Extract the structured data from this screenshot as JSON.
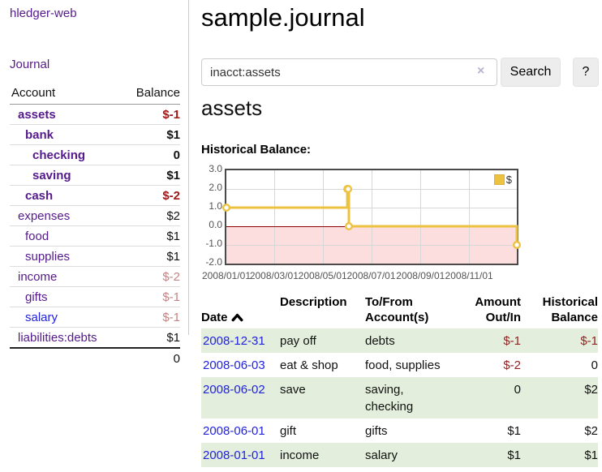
{
  "colors": {
    "link_purple": "#551a8b",
    "link_blue": "#2222dd",
    "negative_strong": "#9e1616",
    "negative_dim": "#c28383",
    "table_negative": "#942121",
    "row_stripe_green": "#e3efdc",
    "series_yellow": "#edc240",
    "negative_region_pink": "#fddede",
    "zero_line_red": "#8b0000"
  },
  "sidebar": {
    "brand": "hledger-web",
    "journal_link": "Journal",
    "accounts_table": {
      "account_header": "Account",
      "balance_header": "Balance",
      "rows": [
        {
          "name": "assets",
          "depth": 1,
          "bold": true,
          "balance": "$-1",
          "balance_style": "neg-strong"
        },
        {
          "name": "bank",
          "depth": 2,
          "bold": true,
          "balance": "$1",
          "balance_style": "pos-strong"
        },
        {
          "name": "checking",
          "depth": 3,
          "bold": true,
          "balance": "0",
          "balance_style": "pos-strong"
        },
        {
          "name": "saving",
          "depth": 3,
          "bold": true,
          "balance": "$1",
          "balance_style": "pos-strong"
        },
        {
          "name": "cash",
          "depth": 2,
          "bold": true,
          "balance": "$-2",
          "balance_style": "neg-strong"
        },
        {
          "name": "expenses",
          "depth": 1,
          "bold": false,
          "balance": "$2",
          "balance_style": "pos"
        },
        {
          "name": "food",
          "depth": 2,
          "bold": false,
          "balance": "$1",
          "balance_style": "pos"
        },
        {
          "name": "supplies",
          "depth": 2,
          "bold": false,
          "balance": "$1",
          "balance_style": "pos"
        },
        {
          "name": "income",
          "depth": 1,
          "bold": false,
          "balance": "$-2",
          "balance_style": "neg-dim"
        },
        {
          "name": "gifts",
          "depth": 2,
          "bold": false,
          "balance": "$-1",
          "balance_style": "neg-dim"
        },
        {
          "name": "salary",
          "depth": 2,
          "bold": false,
          "balance": "$-1",
          "balance_style": "neg-dim",
          "link": "blue"
        },
        {
          "name": "liabilities:debts",
          "depth": 1,
          "bold": false,
          "balance": "$1",
          "balance_style": "pos"
        }
      ],
      "total": "0"
    }
  },
  "header": {
    "title": "sample.journal"
  },
  "search": {
    "query": "inacct:assets",
    "clear_icon": "×",
    "search_label": "Search",
    "help_label": "?"
  },
  "account_page": {
    "heading": "assets",
    "chart_label": "Historical Balance:"
  },
  "chart_data": {
    "type": "line",
    "step": true,
    "title": "Historical Balance:",
    "legend": [
      {
        "name": "$",
        "color": "#edc240"
      }
    ],
    "legend_position": "top-right",
    "grid": true,
    "x_domain": [
      "2008-01-01",
      "2008-12-31"
    ],
    "x_ticks": [
      "2008-01-01",
      "2008-03-01",
      "2008-05-01",
      "2008-07-01",
      "2008-09-01",
      "2008-11-01"
    ],
    "x_tick_labels": [
      "2008/01/01",
      "2008/03/01",
      "2008/05/01",
      "2008/07/01",
      "2008/09/01",
      "2008/11/01"
    ],
    "ylim": [
      -2,
      3
    ],
    "y_ticks": [
      3.0,
      2.0,
      1.0,
      0.0,
      -1.0,
      -2.0
    ],
    "y_tick_labels": [
      "3.0",
      "2.0",
      "1.0",
      "0.0",
      "-1.0",
      "-2.0"
    ],
    "series": [
      {
        "name": "$",
        "color": "#edc240",
        "points": [
          {
            "date": "2008-01-01",
            "value": 1
          },
          {
            "date": "2008-06-01",
            "value": 2
          },
          {
            "date": "2008-06-02",
            "value": 2
          },
          {
            "date": "2008-06-03",
            "value": 0
          },
          {
            "date": "2008-12-31",
            "value": -1
          }
        ]
      }
    ],
    "negative_region_fill": "#fddede",
    "zero_line_color": "#8b0000"
  },
  "transactions": {
    "columns": {
      "date": "Date",
      "description": "Description",
      "accounts": [
        "To/From",
        "Account(s)"
      ],
      "amount": [
        "Amount",
        "Out/In"
      ],
      "balance": [
        "Historical",
        "Balance"
      ]
    },
    "rows": [
      {
        "date": "2008-12-31",
        "description": "pay off",
        "accounts": "debts",
        "amount": "$-1",
        "balance": "$-1"
      },
      {
        "date": "2008-06-03",
        "description": "eat & shop",
        "accounts": "food, supplies",
        "amount": "$-2",
        "balance": "0"
      },
      {
        "date": "2008-06-02",
        "description": "save",
        "accounts": [
          "saving,",
          "checking"
        ],
        "amount": "0",
        "balance": "$2"
      },
      {
        "date": "2008-06-01",
        "description": "gift",
        "accounts": "gifts",
        "amount": "$1",
        "balance": "$2"
      },
      {
        "date": "2008-01-01",
        "description": "income",
        "accounts": "salary",
        "amount": "$1",
        "balance": "$1"
      }
    ]
  }
}
